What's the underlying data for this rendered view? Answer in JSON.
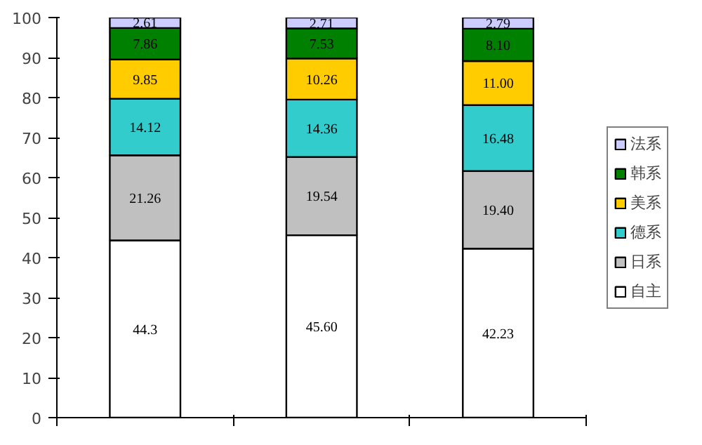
{
  "chart_data": {
    "type": "bar",
    "stacked": true,
    "categories": [
      null,
      null,
      null
    ],
    "series": [
      {
        "name": "自主",
        "color": "#ffffff",
        "values": [
          44.3,
          45.6,
          42.23
        ],
        "value_labels": [
          "44.3",
          "45.60",
          "42.23"
        ]
      },
      {
        "name": "日系",
        "color": "#c0c0c0",
        "values": [
          21.26,
          19.54,
          19.4
        ],
        "value_labels": [
          "21.26",
          "19.54",
          "19.40"
        ]
      },
      {
        "name": "德系",
        "color": "#33cccc",
        "values": [
          14.12,
          14.36,
          16.48
        ],
        "value_labels": [
          "14.12",
          "14.36",
          "16.48"
        ]
      },
      {
        "name": "美系",
        "color": "#ffcc00",
        "values": [
          9.85,
          10.26,
          11.0
        ],
        "value_labels": [
          "9.85",
          "10.26",
          "11.00"
        ]
      },
      {
        "name": "韩系",
        "color": "#008000",
        "values": [
          7.86,
          7.53,
          8.1
        ],
        "value_labels": [
          "7.86",
          "7.53",
          "8.10"
        ]
      },
      {
        "name": "法系",
        "color": "#ccccff",
        "values": [
          2.61,
          2.71,
          2.79
        ],
        "value_labels": [
          "2.61",
          "2.71",
          "2.79"
        ]
      }
    ],
    "ylim": [
      0,
      100
    ],
    "yticks": [
      0,
      10,
      20,
      30,
      40,
      50,
      60,
      70,
      80,
      90,
      100
    ],
    "grid": false,
    "legend": "right"
  }
}
